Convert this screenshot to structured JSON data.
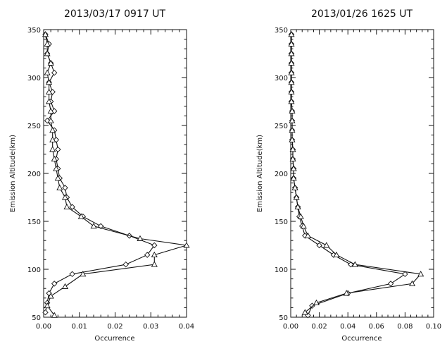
{
  "chart_data": [
    {
      "type": "line",
      "title": "2013/03/17 0917 UT",
      "xlabel": "Occurrence",
      "ylabel": "Emission Altitude(km)",
      "xlim": [
        0,
        0.04
      ],
      "ylim": [
        50,
        350
      ],
      "x_ticks": [
        "0.00",
        "0.01",
        "0.02",
        "0.03",
        "0.04"
      ],
      "y_ticks": [
        "50",
        "100",
        "150",
        "200",
        "250",
        "300",
        "350"
      ],
      "grid": false,
      "series": [
        {
          "marker": "diamond",
          "points": [
            [
              0.0005,
              55
            ],
            [
              0.001,
              65
            ],
            [
              0.0015,
              75
            ],
            [
              0.003,
              85
            ],
            [
              0.008,
              95
            ],
            [
              0.023,
              105
            ],
            [
              0.029,
              115
            ],
            [
              0.031,
              125
            ],
            [
              0.024,
              135
            ],
            [
              0.016,
              145
            ],
            [
              0.011,
              155
            ],
            [
              0.008,
              165
            ],
            [
              0.0065,
              175
            ],
            [
              0.006,
              185
            ],
            [
              0.0045,
              195
            ],
            [
              0.004,
              205
            ],
            [
              0.0035,
              215
            ],
            [
              0.004,
              225
            ],
            [
              0.0035,
              235
            ],
            [
              0.003,
              245
            ],
            [
              0.001,
              255
            ],
            [
              0.003,
              265
            ],
            [
              0.002,
              275
            ],
            [
              0.0025,
              285
            ],
            [
              0.0015,
              295
            ],
            [
              0.003,
              305
            ],
            [
              0.002,
              315
            ],
            [
              0.001,
              325
            ],
            [
              0.0015,
              335
            ],
            [
              0.0005,
              345
            ]
          ]
        },
        {
          "marker": "triangle",
          "points": [
            [
              0.003,
              52
            ],
            [
              0.001,
              62
            ],
            [
              0.002,
              72
            ],
            [
              0.006,
              82
            ],
            [
              0.011,
              95
            ],
            [
              0.031,
              105
            ],
            [
              0.031,
              115
            ],
            [
              0.04,
              125
            ],
            [
              0.027,
              132
            ],
            [
              0.014,
              145
            ],
            [
              0.0105,
              155
            ],
            [
              0.0065,
              165
            ],
            [
              0.006,
              175
            ],
            [
              0.0045,
              185
            ],
            [
              0.004,
              195
            ],
            [
              0.0035,
              205
            ],
            [
              0.003,
              215
            ],
            [
              0.0025,
              225
            ],
            [
              0.0025,
              235
            ],
            [
              0.0025,
              245
            ],
            [
              0.002,
              255
            ],
            [
              0.002,
              265
            ],
            [
              0.0015,
              275
            ],
            [
              0.0015,
              285
            ],
            [
              0.0015,
              295
            ],
            [
              0.001,
              305
            ],
            [
              0.002,
              315
            ],
            [
              0.001,
              325
            ],
            [
              0.001,
              335
            ],
            [
              0.0005,
              345
            ]
          ]
        }
      ]
    },
    {
      "type": "line",
      "title": "2013/01/26 1625 UT",
      "xlabel": "Occurrence",
      "ylabel": "Emission Altitude(km)",
      "xlim": [
        0,
        0.1
      ],
      "ylim": [
        50,
        350
      ],
      "x_ticks": [
        "0.00",
        "0.02",
        "0.04",
        "0.06",
        "0.08",
        "0.10"
      ],
      "y_ticks": [
        "50",
        "100",
        "150",
        "200",
        "250",
        "300",
        "350"
      ],
      "grid": false,
      "series": [
        {
          "marker": "diamond",
          "points": [
            [
              0.012,
              52
            ],
            [
              0.015,
              62
            ],
            [
              0.04,
              75
            ],
            [
              0.07,
              85
            ],
            [
              0.08,
              95
            ],
            [
              0.042,
              105
            ],
            [
              0.03,
              115
            ],
            [
              0.02,
              125
            ],
            [
              0.01,
              135
            ],
            [
              0.008,
              145
            ],
            [
              0.006,
              155
            ],
            [
              0.005,
              165
            ],
            [
              0.004,
              175
            ],
            [
              0.003,
              185
            ],
            [
              0.002,
              195
            ],
            [
              0.002,
              205
            ],
            [
              0.0015,
              215
            ],
            [
              0.0015,
              225
            ],
            [
              0.001,
              235
            ],
            [
              0.001,
              245
            ],
            [
              0.001,
              255
            ],
            [
              0.001,
              265
            ],
            [
              0.0005,
              275
            ],
            [
              0.0005,
              285
            ],
            [
              0.0005,
              295
            ],
            [
              0.0005,
              305
            ],
            [
              0.0005,
              315
            ],
            [
              0.0005,
              325
            ],
            [
              0.0005,
              335
            ],
            [
              0.0005,
              345
            ]
          ]
        },
        {
          "marker": "triangle",
          "points": [
            [
              0.01,
              55
            ],
            [
              0.018,
              65
            ],
            [
              0.039,
              75
            ],
            [
              0.085,
              85
            ],
            [
              0.091,
              95
            ],
            [
              0.045,
              105
            ],
            [
              0.032,
              115
            ],
            [
              0.025,
              125
            ],
            [
              0.012,
              135
            ],
            [
              0.009,
              145
            ],
            [
              0.007,
              155
            ],
            [
              0.005,
              165
            ],
            [
              0.004,
              175
            ],
            [
              0.003,
              185
            ],
            [
              0.002,
              195
            ],
            [
              0.002,
              205
            ],
            [
              0.0015,
              215
            ],
            [
              0.0015,
              225
            ],
            [
              0.001,
              235
            ],
            [
              0.001,
              245
            ],
            [
              0.001,
              255
            ],
            [
              0.001,
              265
            ],
            [
              0.0005,
              275
            ],
            [
              0.0005,
              285
            ],
            [
              0.0005,
              295
            ],
            [
              0.0005,
              305
            ],
            [
              0.0005,
              315
            ],
            [
              0.0005,
              325
            ],
            [
              0.0005,
              335
            ],
            [
              0.0005,
              345
            ]
          ]
        }
      ]
    }
  ]
}
